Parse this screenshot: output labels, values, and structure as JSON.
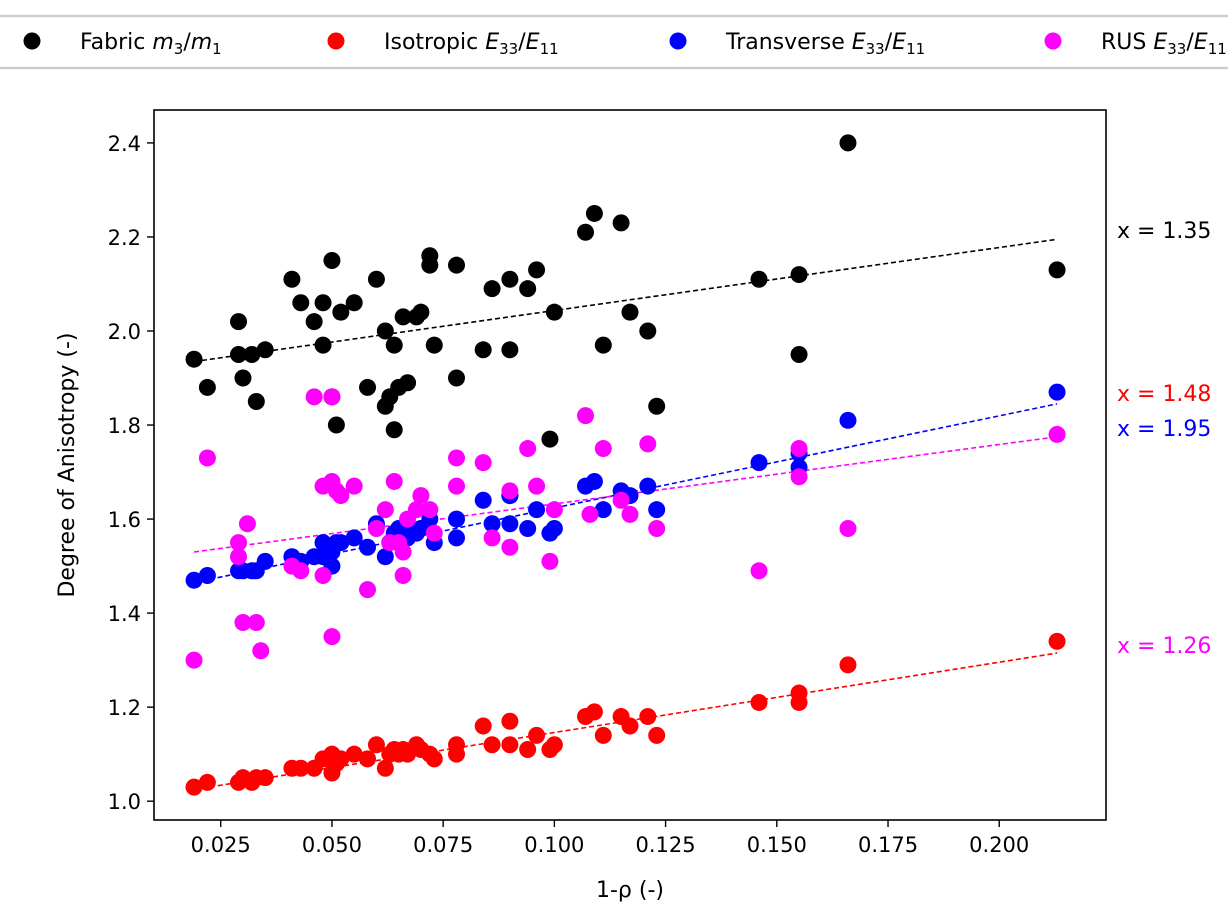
{
  "chart_data": {
    "type": "scatter",
    "xlabel": "1-ρ (-)",
    "ylabel": "Degree of Anisotropy (-)",
    "xlim": [
      0.01,
      0.224
    ],
    "ylim": [
      0.96,
      2.47
    ],
    "grid": false,
    "legend_placement": "top, above plot",
    "x_ticks": [
      0.025,
      0.05,
      0.075,
      0.1,
      0.125,
      0.15,
      0.175,
      0.2
    ],
    "x_tick_labels": [
      "0.025",
      "0.050",
      "0.075",
      "0.100",
      "0.125",
      "0.150",
      "0.175",
      "0.200"
    ],
    "y_ticks": [
      1.0,
      1.2,
      1.4,
      1.6,
      1.8,
      2.0,
      2.2,
      2.4
    ],
    "y_tick_labels": [
      "1.0",
      "1.2",
      "1.4",
      "1.6",
      "1.8",
      "2.0",
      "2.2",
      "2.4"
    ],
    "series": [
      {
        "name": "Fabric m3/m1",
        "legend": {
          "base": "Fabric ",
          "v1": "m",
          "s1": "3",
          "sep": "/",
          "v2": "m",
          "s2": "1"
        },
        "color": "#000000",
        "fit": {
          "x": [
            0.019,
            0.213
          ],
          "y": [
            1.935,
            2.195
          ]
        },
        "annotation": "x = 1.35",
        "points": [
          [
            0.019,
            1.94
          ],
          [
            0.022,
            1.88
          ],
          [
            0.029,
            2.02
          ],
          [
            0.029,
            1.95
          ],
          [
            0.03,
            1.9
          ],
          [
            0.032,
            1.95
          ],
          [
            0.033,
            1.85
          ],
          [
            0.035,
            1.96
          ],
          [
            0.041,
            2.11
          ],
          [
            0.043,
            2.06
          ],
          [
            0.046,
            2.02
          ],
          [
            0.048,
            2.06
          ],
          [
            0.048,
            1.97
          ],
          [
            0.05,
            2.15
          ],
          [
            0.05,
            1.86
          ],
          [
            0.051,
            1.8
          ],
          [
            0.052,
            2.04
          ],
          [
            0.055,
            2.06
          ],
          [
            0.058,
            1.88
          ],
          [
            0.06,
            2.11
          ],
          [
            0.062,
            2.0
          ],
          [
            0.062,
            1.84
          ],
          [
            0.063,
            1.86
          ],
          [
            0.064,
            1.97
          ],
          [
            0.064,
            1.79
          ],
          [
            0.065,
            1.88
          ],
          [
            0.066,
            2.03
          ],
          [
            0.067,
            1.89
          ],
          [
            0.069,
            2.03
          ],
          [
            0.07,
            2.04
          ],
          [
            0.072,
            2.16
          ],
          [
            0.072,
            2.14
          ],
          [
            0.073,
            1.97
          ],
          [
            0.078,
            2.14
          ],
          [
            0.078,
            1.9
          ],
          [
            0.084,
            1.96
          ],
          [
            0.086,
            2.09
          ],
          [
            0.09,
            2.11
          ],
          [
            0.09,
            1.96
          ],
          [
            0.09,
            1.65
          ],
          [
            0.094,
            2.09
          ],
          [
            0.096,
            2.13
          ],
          [
            0.099,
            1.77
          ],
          [
            0.1,
            2.04
          ],
          [
            0.107,
            2.21
          ],
          [
            0.109,
            2.25
          ],
          [
            0.111,
            1.97
          ],
          [
            0.115,
            2.23
          ],
          [
            0.117,
            2.04
          ],
          [
            0.121,
            2.0
          ],
          [
            0.123,
            1.84
          ],
          [
            0.146,
            2.11
          ],
          [
            0.155,
            2.12
          ],
          [
            0.155,
            1.95
          ],
          [
            0.166,
            2.4
          ],
          [
            0.213,
            2.13
          ]
        ]
      },
      {
        "name": "Isotropic E33/E11",
        "legend": {
          "base": "Isotropic ",
          "v1": "E",
          "s1": "33",
          "sep": "/",
          "v2": "E",
          "s2": "11"
        },
        "color": "#ff0000",
        "fit": {
          "x": [
            0.019,
            0.213
          ],
          "y": [
            1.025,
            1.315
          ]
        },
        "annotation": "x = 1.48",
        "points": [
          [
            0.019,
            1.03
          ],
          [
            0.022,
            1.04
          ],
          [
            0.029,
            1.04
          ],
          [
            0.03,
            1.05
          ],
          [
            0.032,
            1.04
          ],
          [
            0.033,
            1.05
          ],
          [
            0.035,
            1.05
          ],
          [
            0.041,
            1.07
          ],
          [
            0.043,
            1.07
          ],
          [
            0.046,
            1.07
          ],
          [
            0.048,
            1.09
          ],
          [
            0.05,
            1.1
          ],
          [
            0.05,
            1.06
          ],
          [
            0.051,
            1.08
          ],
          [
            0.052,
            1.09
          ],
          [
            0.055,
            1.1
          ],
          [
            0.058,
            1.09
          ],
          [
            0.06,
            1.12
          ],
          [
            0.062,
            1.07
          ],
          [
            0.063,
            1.1
          ],
          [
            0.064,
            1.11
          ],
          [
            0.065,
            1.1
          ],
          [
            0.066,
            1.11
          ],
          [
            0.067,
            1.1
          ],
          [
            0.069,
            1.12
          ],
          [
            0.07,
            1.11
          ],
          [
            0.072,
            1.1
          ],
          [
            0.073,
            1.09
          ],
          [
            0.078,
            1.1
          ],
          [
            0.078,
            1.12
          ],
          [
            0.084,
            1.16
          ],
          [
            0.086,
            1.12
          ],
          [
            0.09,
            1.12
          ],
          [
            0.09,
            1.17
          ],
          [
            0.094,
            1.11
          ],
          [
            0.096,
            1.14
          ],
          [
            0.099,
            1.11
          ],
          [
            0.1,
            1.12
          ],
          [
            0.107,
            1.18
          ],
          [
            0.109,
            1.19
          ],
          [
            0.111,
            1.14
          ],
          [
            0.115,
            1.18
          ],
          [
            0.117,
            1.16
          ],
          [
            0.121,
            1.18
          ],
          [
            0.123,
            1.14
          ],
          [
            0.146,
            1.21
          ],
          [
            0.155,
            1.21
          ],
          [
            0.155,
            1.23
          ],
          [
            0.166,
            1.29
          ],
          [
            0.213,
            1.34
          ]
        ]
      },
      {
        "name": "Transverse E33/E11",
        "legend": {
          "base": "Transverse ",
          "v1": "E",
          "s1": "33",
          "sep": "/",
          "v2": "E",
          "s2": "11"
        },
        "color": "#0000ff",
        "fit": {
          "x": [
            0.019,
            0.213
          ],
          "y": [
            1.465,
            1.845
          ]
        },
        "annotation": "x = 1.95",
        "points": [
          [
            0.019,
            1.47
          ],
          [
            0.022,
            1.48
          ],
          [
            0.029,
            1.49
          ],
          [
            0.03,
            1.49
          ],
          [
            0.032,
            1.49
          ],
          [
            0.033,
            1.49
          ],
          [
            0.035,
            1.51
          ],
          [
            0.041,
            1.52
          ],
          [
            0.043,
            1.51
          ],
          [
            0.046,
            1.52
          ],
          [
            0.048,
            1.52
          ],
          [
            0.048,
            1.55
          ],
          [
            0.05,
            1.53
          ],
          [
            0.05,
            1.5
          ],
          [
            0.051,
            1.55
          ],
          [
            0.052,
            1.55
          ],
          [
            0.055,
            1.56
          ],
          [
            0.058,
            1.54
          ],
          [
            0.06,
            1.59
          ],
          [
            0.062,
            1.52
          ],
          [
            0.063,
            1.55
          ],
          [
            0.064,
            1.57
          ],
          [
            0.065,
            1.58
          ],
          [
            0.066,
            1.58
          ],
          [
            0.067,
            1.56
          ],
          [
            0.069,
            1.57
          ],
          [
            0.07,
            1.58
          ],
          [
            0.072,
            1.6
          ],
          [
            0.073,
            1.55
          ],
          [
            0.078,
            1.56
          ],
          [
            0.078,
            1.6
          ],
          [
            0.084,
            1.64
          ],
          [
            0.086,
            1.59
          ],
          [
            0.09,
            1.59
          ],
          [
            0.09,
            1.65
          ],
          [
            0.094,
            1.58
          ],
          [
            0.096,
            1.62
          ],
          [
            0.099,
            1.57
          ],
          [
            0.1,
            1.58
          ],
          [
            0.107,
            1.67
          ],
          [
            0.109,
            1.68
          ],
          [
            0.111,
            1.62
          ],
          [
            0.115,
            1.66
          ],
          [
            0.117,
            1.65
          ],
          [
            0.121,
            1.67
          ],
          [
            0.123,
            1.62
          ],
          [
            0.146,
            1.72
          ],
          [
            0.155,
            1.71
          ],
          [
            0.155,
            1.74
          ],
          [
            0.166,
            1.81
          ],
          [
            0.213,
            1.87
          ]
        ]
      },
      {
        "name": "RUS E33/E11",
        "legend": {
          "base": "RUS ",
          "v1": "E",
          "s1": "33",
          "sep": "/",
          "v2": "E",
          "s2": "11"
        },
        "color": "#ff00ff",
        "fit": {
          "x": [
            0.019,
            0.213
          ],
          "y": [
            1.53,
            1.775
          ]
        },
        "annotation": "x = 1.26",
        "points": [
          [
            0.019,
            1.3
          ],
          [
            0.022,
            1.73
          ],
          [
            0.029,
            1.55
          ],
          [
            0.029,
            1.52
          ],
          [
            0.03,
            1.38
          ],
          [
            0.031,
            1.59
          ],
          [
            0.033,
            1.38
          ],
          [
            0.034,
            1.32
          ],
          [
            0.041,
            1.5
          ],
          [
            0.043,
            1.49
          ],
          [
            0.046,
            1.86
          ],
          [
            0.048,
            1.48
          ],
          [
            0.048,
            1.67
          ],
          [
            0.05,
            1.68
          ],
          [
            0.05,
            1.86
          ],
          [
            0.05,
            1.35
          ],
          [
            0.051,
            1.66
          ],
          [
            0.052,
            1.65
          ],
          [
            0.055,
            1.67
          ],
          [
            0.058,
            1.45
          ],
          [
            0.06,
            1.58
          ],
          [
            0.062,
            1.62
          ],
          [
            0.063,
            1.55
          ],
          [
            0.064,
            1.68
          ],
          [
            0.065,
            1.55
          ],
          [
            0.066,
            1.53
          ],
          [
            0.066,
            1.48
          ],
          [
            0.067,
            1.6
          ],
          [
            0.069,
            1.62
          ],
          [
            0.07,
            1.65
          ],
          [
            0.072,
            1.62
          ],
          [
            0.073,
            1.57
          ],
          [
            0.078,
            1.67
          ],
          [
            0.078,
            1.73
          ],
          [
            0.084,
            1.72
          ],
          [
            0.086,
            1.56
          ],
          [
            0.09,
            1.54
          ],
          [
            0.09,
            1.66
          ],
          [
            0.094,
            1.75
          ],
          [
            0.096,
            1.67
          ],
          [
            0.099,
            1.51
          ],
          [
            0.1,
            1.62
          ],
          [
            0.107,
            1.82
          ],
          [
            0.108,
            1.61
          ],
          [
            0.111,
            1.75
          ],
          [
            0.115,
            1.64
          ],
          [
            0.117,
            1.61
          ],
          [
            0.121,
            1.76
          ],
          [
            0.123,
            1.58
          ],
          [
            0.146,
            1.49
          ],
          [
            0.155,
            1.69
          ],
          [
            0.155,
            1.75
          ],
          [
            0.166,
            1.58
          ],
          [
            0.213,
            1.78
          ]
        ]
      }
    ]
  }
}
